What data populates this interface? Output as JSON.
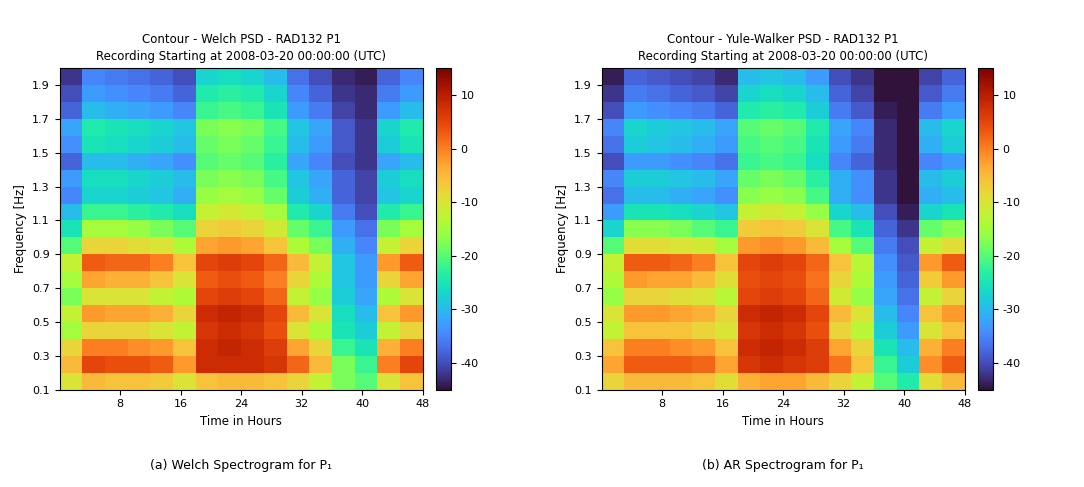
{
  "chart_data": [
    {
      "type": "heatmap",
      "title": "Contour - Welch PSD - RAD132 P1\nRecording Starting at 2008-03-20 00:00:00 (UTC)",
      "caption": "(a) Welch Spectrogram for P₁",
      "x_label": "Time in Hours",
      "y_label": "Frequency [Hz]",
      "xlim": [
        0,
        48
      ],
      "ylim": [
        0.1,
        2.0
      ],
      "xticks": [
        8,
        16,
        24,
        32,
        40,
        48
      ],
      "yticks": [
        0.1,
        0.3,
        0.5,
        0.7,
        0.9,
        1.1,
        1.3,
        1.5,
        1.7,
        1.9
      ],
      "x_edges": [
        0,
        3,
        6,
        9,
        12,
        15,
        18,
        21,
        24,
        27,
        30,
        33,
        36,
        39,
        42,
        45,
        48
      ],
      "y_edges": [
        0.1,
        0.2,
        0.3,
        0.4,
        0.5,
        0.6,
        0.7,
        0.8,
        0.9,
        1.0,
        1.1,
        1.2,
        1.3,
        1.4,
        1.5,
        1.6,
        1.7,
        1.8,
        1.9,
        2.0
      ],
      "cells": [
        [
          -10,
          -5,
          -6,
          -6,
          -7,
          -10,
          -6,
          -5,
          -5,
          -6,
          -8,
          -12,
          -18,
          -20,
          -10,
          -6
        ],
        [
          -5,
          5,
          4,
          4,
          3,
          -2,
          8,
          8,
          8,
          7,
          2,
          -5,
          -18,
          -22,
          0,
          5
        ],
        [
          -8,
          0,
          0,
          -1,
          -2,
          -6,
          8,
          9,
          8,
          6,
          -3,
          -8,
          -22,
          -25,
          -4,
          0
        ],
        [
          -15,
          -8,
          -8,
          -8,
          -10,
          -12,
          7,
          8,
          7,
          4,
          -10,
          -14,
          -25,
          -28,
          -12,
          -8
        ],
        [
          -12,
          -2,
          -3,
          -3,
          -4,
          -8,
          8,
          9,
          8,
          5,
          -5,
          -10,
          -26,
          -30,
          -6,
          -2
        ],
        [
          -18,
          -10,
          -10,
          -10,
          -12,
          -14,
          5,
          6,
          5,
          2,
          -12,
          -16,
          -28,
          -32,
          -14,
          -10
        ],
        [
          -15,
          -3,
          -4,
          -4,
          -6,
          -10,
          3,
          4,
          3,
          0,
          -8,
          -14,
          -29,
          -33,
          -8,
          -3
        ],
        [
          -12,
          3,
          2,
          2,
          0,
          -6,
          5,
          6,
          5,
          2,
          -5,
          -12,
          -29,
          -33,
          -2,
          3
        ],
        [
          -20,
          -8,
          -8,
          -9,
          -10,
          -14,
          -3,
          -2,
          -3,
          -6,
          -14,
          -18,
          -31,
          -35,
          -12,
          -8
        ],
        [
          -25,
          -15,
          -15,
          -16,
          -18,
          -20,
          -8,
          -7,
          -8,
          -11,
          -19,
          -22,
          -33,
          -37,
          -18,
          -15
        ],
        [
          -30,
          -22,
          -22,
          -23,
          -24,
          -26,
          -12,
          -11,
          -12,
          -15,
          -24,
          -27,
          -36,
          -40,
          -24,
          -22
        ],
        [
          -35,
          -27,
          -27,
          -28,
          -29,
          -31,
          -16,
          -15,
          -16,
          -19,
          -28,
          -31,
          -38,
          -41,
          -29,
          -27
        ],
        [
          -33,
          -26,
          -26,
          -27,
          -28,
          -30,
          -18,
          -17,
          -18,
          -21,
          -29,
          -32,
          -38,
          -41,
          -28,
          -26
        ],
        [
          -38,
          -30,
          -30,
          -31,
          -32,
          -34,
          -20,
          -19,
          -20,
          -23,
          -32,
          -35,
          -40,
          -42,
          -32,
          -30
        ],
        [
          -34,
          -25,
          -26,
          -27,
          -28,
          -30,
          -19,
          -18,
          -19,
          -22,
          -30,
          -33,
          -39,
          -42,
          -28,
          -25
        ],
        [
          -32,
          -24,
          -25,
          -26,
          -27,
          -29,
          -18,
          -17,
          -18,
          -21,
          -29,
          -32,
          -39,
          -42,
          -27,
          -24
        ],
        [
          -38,
          -30,
          -31,
          -32,
          -33,
          -35,
          -22,
          -21,
          -22,
          -25,
          -33,
          -36,
          -41,
          -43,
          -33,
          -30
        ],
        [
          -40,
          -33,
          -34,
          -35,
          -36,
          -38,
          -24,
          -23,
          -24,
          -27,
          -35,
          -38,
          -42,
          -43,
          -36,
          -33
        ],
        [
          -42,
          -35,
          -36,
          -37,
          -38,
          -40,
          -27,
          -26,
          -27,
          -30,
          -37,
          -40,
          -43,
          -44,
          -38,
          -35
        ]
      ],
      "colorbar_range": [
        -45,
        15
      ],
      "colorbar_ticks": [
        -40,
        -30,
        -20,
        -10,
        0,
        10
      ]
    },
    {
      "type": "heatmap",
      "title": "Contour - Yule-Walker PSD - RAD132 P1\nRecording Starting at 2008-03-20 00:00:00 (UTC)",
      "caption": "(b) AR Spectrogram for P₁",
      "x_label": "Time in Hours",
      "y_label": "Frequency [Hz]",
      "xlim": [
        0,
        48
      ],
      "ylim": [
        0.1,
        2.0
      ],
      "xticks": [
        8,
        16,
        24,
        32,
        40,
        48
      ],
      "yticks": [
        0.1,
        0.3,
        0.5,
        0.7,
        0.9,
        1.1,
        1.3,
        1.5,
        1.7,
        1.9
      ],
      "x_edges": [
        0,
        3,
        6,
        9,
        12,
        15,
        18,
        21,
        24,
        27,
        30,
        33,
        36,
        39,
        42,
        45,
        48
      ],
      "y_edges": [
        0.1,
        0.2,
        0.3,
        0.4,
        0.5,
        0.6,
        0.7,
        0.8,
        0.9,
        1.0,
        1.1,
        1.2,
        1.3,
        1.4,
        1.5,
        1.6,
        1.7,
        1.8,
        1.9,
        2.0
      ],
      "cells": [
        [
          -8,
          -5,
          -5,
          -5,
          -6,
          -9,
          -4,
          -3,
          -3,
          -5,
          -8,
          -12,
          -20,
          -24,
          -9,
          -5
        ],
        [
          -3,
          3,
          3,
          3,
          2,
          -3,
          7,
          8,
          7,
          6,
          1,
          -6,
          -22,
          -28,
          -1,
          3
        ],
        [
          -6,
          0,
          0,
          -1,
          -2,
          -6,
          8,
          9,
          8,
          6,
          -3,
          -8,
          -25,
          -30,
          -4,
          0
        ],
        [
          -12,
          -6,
          -6,
          -6,
          -8,
          -10,
          7,
          8,
          7,
          4,
          -8,
          -13,
          -28,
          -33,
          -10,
          -6
        ],
        [
          -10,
          -2,
          -2,
          -3,
          -4,
          -8,
          8,
          9,
          8,
          5,
          -5,
          -10,
          -30,
          -35,
          -6,
          -2
        ],
        [
          -16,
          -8,
          -8,
          -9,
          -10,
          -13,
          5,
          6,
          5,
          2,
          -11,
          -16,
          -32,
          -37,
          -12,
          -8
        ],
        [
          -14,
          -2,
          -3,
          -3,
          -5,
          -9,
          4,
          5,
          4,
          1,
          -8,
          -14,
          -33,
          -38,
          -7,
          -2
        ],
        [
          -12,
          3,
          3,
          2,
          0,
          -6,
          5,
          6,
          5,
          2,
          -6,
          -13,
          -34,
          -39,
          -2,
          3
        ],
        [
          -20,
          -9,
          -9,
          -10,
          -11,
          -15,
          -2,
          -1,
          -2,
          -5,
          -15,
          -20,
          -36,
          -40,
          -12,
          -9
        ],
        [
          -27,
          -17,
          -17,
          -18,
          -20,
          -22,
          -7,
          -6,
          -7,
          -10,
          -21,
          -25,
          -38,
          -42,
          -19,
          -17
        ],
        [
          -33,
          -25,
          -25,
          -26,
          -27,
          -29,
          -12,
          -11,
          -12,
          -16,
          -27,
          -30,
          -40,
          -44,
          -27,
          -25
        ],
        [
          -37,
          -30,
          -30,
          -31,
          -32,
          -34,
          -17,
          -16,
          -17,
          -21,
          -31,
          -34,
          -42,
          -45,
          -31,
          -30
        ],
        [
          -35,
          -28,
          -28,
          -29,
          -30,
          -32,
          -19,
          -18,
          -19,
          -23,
          -31,
          -34,
          -42,
          -45,
          -30,
          -28
        ],
        [
          -40,
          -33,
          -33,
          -34,
          -35,
          -37,
          -22,
          -21,
          -22,
          -26,
          -35,
          -38,
          -43,
          -45,
          -35,
          -33
        ],
        [
          -37,
          -28,
          -29,
          -30,
          -31,
          -33,
          -21,
          -20,
          -21,
          -25,
          -33,
          -36,
          -43,
          -45,
          -31,
          -28
        ],
        [
          -35,
          -27,
          -28,
          -29,
          -30,
          -32,
          -20,
          -19,
          -20,
          -24,
          -32,
          -35,
          -43,
          -45,
          -30,
          -27
        ],
        [
          -40,
          -33,
          -34,
          -35,
          -36,
          -38,
          -24,
          -23,
          -24,
          -28,
          -36,
          -39,
          -44,
          -45,
          -36,
          -33
        ],
        [
          -42,
          -36,
          -37,
          -38,
          -39,
          -41,
          -27,
          -26,
          -27,
          -30,
          -38,
          -41,
          -45,
          -45,
          -39,
          -36
        ],
        [
          -44,
          -38,
          -39,
          -40,
          -41,
          -43,
          -30,
          -29,
          -30,
          -33,
          -40,
          -42,
          -45,
          -45,
          -41,
          -38
        ]
      ],
      "colorbar_range": [
        -45,
        15
      ],
      "colorbar_ticks": [
        -40,
        -30,
        -20,
        -10,
        0,
        10
      ]
    }
  ]
}
